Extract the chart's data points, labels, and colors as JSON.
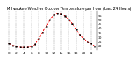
{
  "title": "Milwaukee Weather Outdoor Temperature per Hour (Last 24 Hours)",
  "hours": [
    0,
    1,
    2,
    3,
    4,
    5,
    6,
    7,
    8,
    9,
    10,
    11,
    12,
    13,
    14,
    15,
    16,
    17,
    18,
    19,
    20,
    21,
    22,
    23
  ],
  "temps": [
    22,
    20,
    19,
    18,
    18,
    18,
    19,
    21,
    28,
    35,
    42,
    50,
    55,
    57,
    56,
    54,
    50,
    45,
    38,
    32,
    28,
    24,
    22,
    19
  ],
  "line_color": "#ff0000",
  "marker_color": "#000000",
  "background_color": "#ffffff",
  "grid_color": "#888888",
  "ylim": [
    15,
    60
  ],
  "yticks": [
    20,
    25,
    30,
    35,
    40,
    45,
    50,
    55
  ],
  "xlim": [
    -0.5,
    23.5
  ],
  "xtick_step": 2,
  "title_fontsize": 3.8,
  "tick_fontsize": 3.2,
  "line_width": 0.7,
  "marker_size": 1.2,
  "grid_linewidth": 0.35,
  "spine_linewidth": 0.5
}
